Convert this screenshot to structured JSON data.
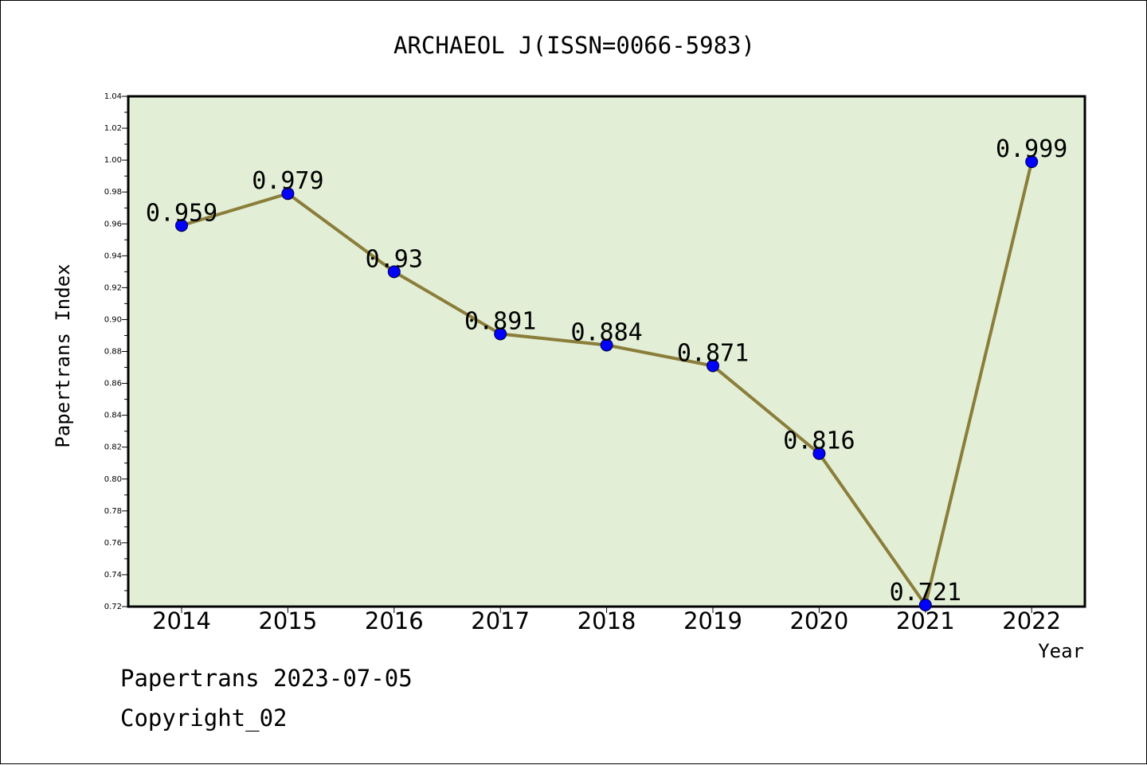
{
  "chart_data": {
    "type": "line",
    "title": "ARCHAEOL J(ISSN=0066-5983)",
    "xlabel": "Year",
    "ylabel": "Papertrans Index",
    "categories": [
      "2014",
      "2015",
      "2016",
      "2017",
      "2018",
      "2019",
      "2020",
      "2021",
      "2022"
    ],
    "values": [
      0.959,
      0.979,
      0.93,
      0.891,
      0.884,
      0.871,
      0.816,
      0.721,
      0.999
    ],
    "data_labels": [
      "0.959",
      "0.979",
      "0.93",
      "0.891",
      "0.884",
      "0.871",
      "0.816",
      "0.721",
      "0.999"
    ],
    "ylim": [
      0.72,
      1.04
    ],
    "yticks": [
      "0.72",
      "0.74",
      "0.76",
      "0.78",
      "0.80",
      "0.82",
      "0.84",
      "0.86",
      "0.88",
      "0.90",
      "0.92",
      "0.94",
      "0.96",
      "0.98",
      "1.00",
      "1.02",
      "1.04"
    ],
    "grid": false,
    "colors": {
      "plot_background": "#e2efd6",
      "line": "#8b7d3a",
      "marker": "#0000ff",
      "axes": "#000000"
    }
  },
  "footer": {
    "line1": "Papertrans 2023-07-05",
    "line2": "Copyright_02"
  }
}
